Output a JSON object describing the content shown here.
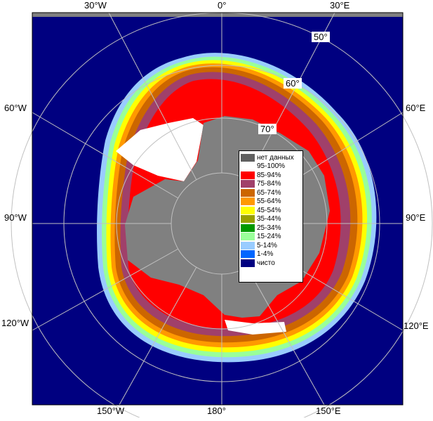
{
  "map": {
    "colors": {
      "ocean": "#000080",
      "land": "#808080",
      "frame_bg": "#ffffff",
      "grid": "#c0c0c0"
    }
  },
  "graticule": {
    "lon_labels": {
      "top_30w": "30°W",
      "top_0": "0°",
      "top_30e": "30°E",
      "left_60w": "60°W",
      "left_90w": "90°W",
      "left_120w": "120°W",
      "right_60e": "60°E",
      "right_90e": "90°E",
      "right_120e": "120°E",
      "bottom_150w": "150°W",
      "bottom_180": "180°",
      "bottom_150e": "150°E"
    },
    "lat_labels": {
      "lat50": "50°",
      "lat60": "60°",
      "lat70": "70°"
    }
  },
  "legend": {
    "items": [
      {
        "label": "нет данных",
        "color": "#606060"
      },
      {
        "label": "95-100%",
        "color": "#ffffff"
      },
      {
        "label": "85-94%",
        "color": "#ff0000"
      },
      {
        "label": "75-84%",
        "color": "#a0406a"
      },
      {
        "label": "65-74%",
        "color": "#cc6600"
      },
      {
        "label": "55-64%",
        "color": "#ff9900"
      },
      {
        "label": "45-54%",
        "color": "#ffff00"
      },
      {
        "label": "35-44%",
        "color": "#99a000"
      },
      {
        "label": "25-34%",
        "color": "#009900"
      },
      {
        "label": "15-24%",
        "color": "#99ff99"
      },
      {
        "label": "5-14%",
        "color": "#99ccff"
      },
      {
        "label": "1-4%",
        "color": "#0066ff"
      },
      {
        "label": "чисто",
        "color": "#000080"
      }
    ]
  }
}
